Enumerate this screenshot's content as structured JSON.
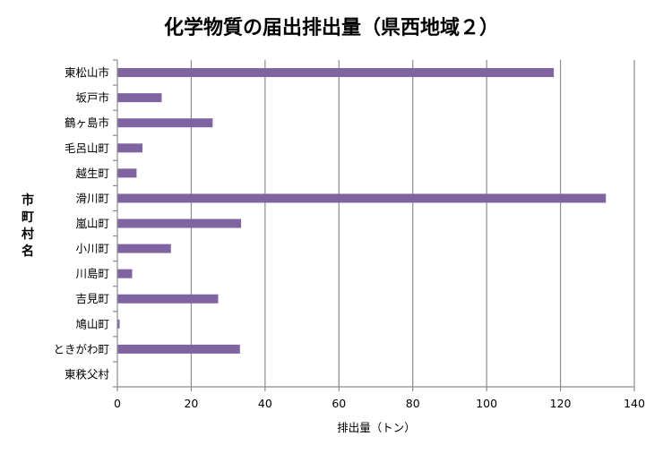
{
  "chart_data": {
    "type": "bar",
    "orientation": "horizontal",
    "title": "化学物質の届出排出量（県西地域２）",
    "xlabel": "排出量（トン）",
    "ylabel": "市町村名",
    "categories": [
      "東松山市",
      "坂戸市",
      "鶴ヶ島市",
      "毛呂山町",
      "越生町",
      "滑川町",
      "嵐山町",
      "小川町",
      "川島町",
      "吉見町",
      "鳩山町",
      "ときがわ町",
      "東秩父村"
    ],
    "values": [
      118.2,
      12.0,
      25.8,
      6.8,
      5.2,
      132.3,
      33.5,
      14.5,
      4.0,
      27.3,
      0.6,
      33.2,
      0
    ],
    "xlim": [
      0,
      140
    ],
    "xticks": [
      0,
      20,
      40,
      60,
      80,
      100,
      120,
      140
    ],
    "grid": true,
    "bar_color": "#8064a2"
  }
}
